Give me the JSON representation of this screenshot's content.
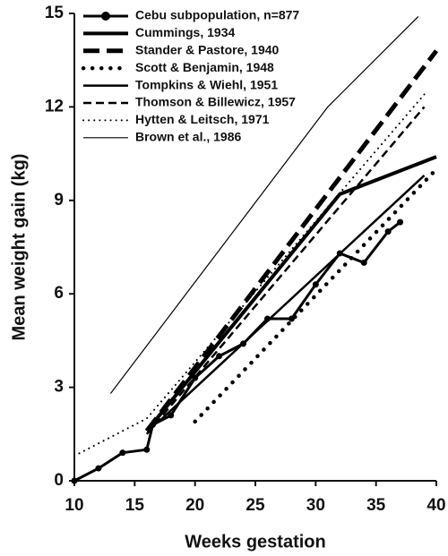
{
  "chart_data": {
    "type": "line",
    "x_label": "Weeks gestation",
    "y_label": "Mean weight gain (kg)",
    "xlim": [
      10,
      40
    ],
    "xticks": [
      10,
      15,
      20,
      25,
      30,
      35,
      40
    ],
    "ylim": [
      0,
      15
    ],
    "yticks": [
      0,
      3,
      6,
      9,
      12,
      15
    ],
    "legend": "upper left",
    "series": [
      {
        "name": "Cebu subpopulation,  n=877",
        "color": "#000000",
        "style": "marker",
        "x": [
          10,
          12,
          14,
          16,
          16.5,
          18,
          20,
          22,
          24,
          26,
          28,
          30,
          32,
          34,
          36,
          37
        ],
        "values": [
          0,
          0.4,
          0.9,
          1.0,
          1.8,
          2.1,
          3.3,
          4.0,
          4.4,
          5.2,
          5.2,
          6.3,
          7.3,
          7.0,
          8.0,
          8.3
        ]
      },
      {
        "name": "Cummings, 1934",
        "color": "#000000",
        "style": "thick",
        "x": [
          16,
          32,
          40
        ],
        "values": [
          1.6,
          9.2,
          10.4
        ]
      },
      {
        "name": "Stander & Pastore, 1940",
        "color": "#000000",
        "style": "thick-dashed",
        "x": [
          16,
          40
        ],
        "values": [
          1.6,
          13.8
        ]
      },
      {
        "name": "Scott & Benjamin, 1948",
        "color": "#000000",
        "style": "thick-dotted",
        "x": [
          20,
          40
        ],
        "values": [
          1.9,
          10.0
        ]
      },
      {
        "name": "Tompkins & Wiehl, 1951",
        "color": "#000000",
        "style": "medium",
        "x": [
          17,
          39
        ],
        "values": [
          1.9,
          9.8
        ]
      },
      {
        "name": "Thomson & Billewicz, 1957",
        "color": "#000000",
        "style": "dashed",
        "x": [
          16,
          39
        ],
        "values": [
          1.5,
          12.0
        ]
      },
      {
        "name": "Hytten & Leitsch, 1971",
        "color": "#000000",
        "style": "dotted",
        "x": [
          10,
          16,
          39
        ],
        "values": [
          0.8,
          2.0,
          12.4
        ]
      },
      {
        "name": "Brown et al., 1986",
        "color": "#000000",
        "style": "thin",
        "x": [
          13,
          31,
          38.5
        ],
        "values": [
          2.8,
          12.0,
          14.9
        ]
      }
    ]
  }
}
